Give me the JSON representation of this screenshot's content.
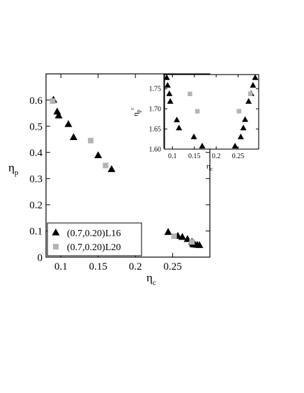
{
  "chart_data": [
    {
      "type": "scatter",
      "title": "",
      "xlabel": "η",
      "xlabel_sub": "c",
      "ylabel": "η",
      "ylabel_sub": "p",
      "xlim": [
        0.08,
        0.3
      ],
      "ylim": [
        0,
        0.7
      ],
      "xticks": [
        0.1,
        0.15,
        0.2,
        0.25
      ],
      "xtick_labels": [
        "0.1",
        "0.15",
        "0.2",
        "0.25"
      ],
      "yticks": [
        0,
        0.1,
        0.2,
        0.3,
        0.4,
        0.5,
        0.6
      ],
      "ytick_labels": [
        "0",
        "0.1",
        "0.2",
        "0.3",
        "0.4",
        "0.5",
        "0.6"
      ],
      "grid": false,
      "legend_position": "bottom-left",
      "series": [
        {
          "name": "(0.7,0.20)L16",
          "marker": "triangle",
          "color": "#000000",
          "points": [
            {
              "x": 0.09,
              "y": 0.6
            },
            {
              "x": 0.095,
              "y": 0.555
            },
            {
              "x": 0.097,
              "y": 0.54
            },
            {
              "x": 0.11,
              "y": 0.507
            },
            {
              "x": 0.117,
              "y": 0.457
            },
            {
              "x": 0.15,
              "y": 0.388
            },
            {
              "x": 0.168,
              "y": 0.335
            },
            {
              "x": 0.244,
              "y": 0.095
            },
            {
              "x": 0.257,
              "y": 0.08
            },
            {
              "x": 0.263,
              "y": 0.076
            },
            {
              "x": 0.27,
              "y": 0.068
            },
            {
              "x": 0.276,
              "y": 0.058
            },
            {
              "x": 0.277,
              "y": 0.052
            },
            {
              "x": 0.278,
              "y": 0.048
            },
            {
              "x": 0.28,
              "y": 0.047
            },
            {
              "x": 0.283,
              "y": 0.046
            },
            {
              "x": 0.286,
              "y": 0.045
            }
          ]
        },
        {
          "name": "(0.7,0.20)L20",
          "marker": "square",
          "color": "#b4b4b4",
          "points": [
            {
              "x": 0.089,
              "y": 0.596
            },
            {
              "x": 0.14,
              "y": 0.445
            },
            {
              "x": 0.16,
              "y": 0.35
            },
            {
              "x": 0.252,
              "y": 0.08
            },
            {
              "x": 0.276,
              "y": 0.058
            }
          ]
        }
      ]
    },
    {
      "type": "scatter",
      "title": "",
      "inset": true,
      "xlabel": "η",
      "xlabel_sub": "c",
      "ylabel": "η",
      "ylabel_sub": "p",
      "ylabel_sup": "r",
      "xlim": [
        0.082,
        0.297
      ],
      "ylim": [
        1.6,
        1.785
      ],
      "xticks": [
        0.1,
        0.15,
        0.2,
        0.25
      ],
      "xtick_labels": [
        "0.1",
        "0.15",
        "0.2",
        "0.25"
      ],
      "yticks": [
        1.6,
        1.65,
        1.7,
        1.75
      ],
      "ytick_labels": [
        "1.60",
        "1.65",
        "1.70",
        "1.75"
      ],
      "grid": false,
      "series": [
        {
          "marker": "triangle",
          "color": "#000000",
          "points": [
            {
              "x": 0.087,
              "y": 1.777
            },
            {
              "x": 0.089,
              "y": 1.758
            },
            {
              "x": 0.093,
              "y": 1.737
            },
            {
              "x": 0.095,
              "y": 1.718
            },
            {
              "x": 0.11,
              "y": 1.672
            },
            {
              "x": 0.115,
              "y": 1.652
            },
            {
              "x": 0.149,
              "y": 1.63
            },
            {
              "x": 0.168,
              "y": 1.607
            },
            {
              "x": 0.243,
              "y": 1.607
            },
            {
              "x": 0.256,
              "y": 1.63
            },
            {
              "x": 0.262,
              "y": 1.652
            },
            {
              "x": 0.266,
              "y": 1.673
            },
            {
              "x": 0.274,
              "y": 1.718
            },
            {
              "x": 0.28,
              "y": 1.737
            },
            {
              "x": 0.284,
              "y": 1.758
            },
            {
              "x": 0.289,
              "y": 1.777
            }
          ]
        },
        {
          "marker": "square",
          "color": "#b4b4b4",
          "points": [
            {
              "x": 0.14,
              "y": 1.737
            },
            {
              "x": 0.157,
              "y": 1.694
            },
            {
              "x": 0.252,
              "y": 1.694
            },
            {
              "x": 0.278,
              "y": 1.737
            }
          ]
        }
      ]
    }
  ]
}
